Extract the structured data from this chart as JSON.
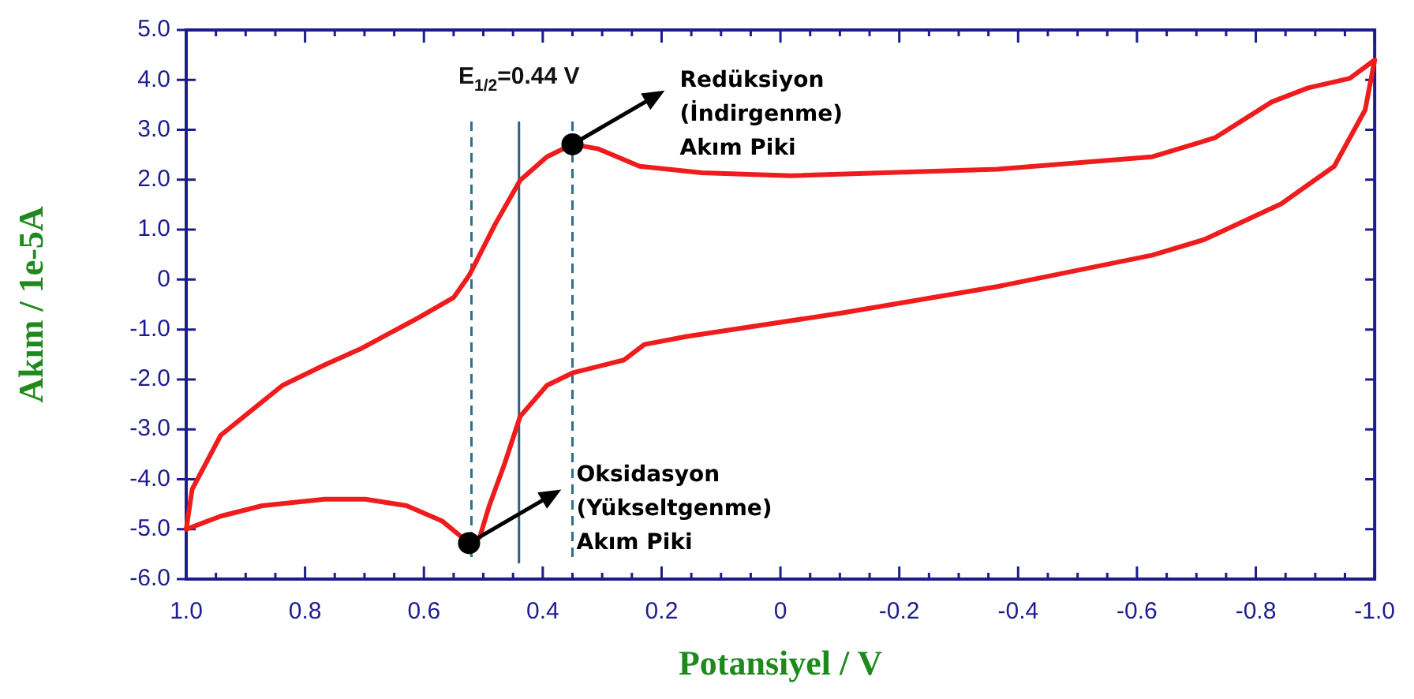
{
  "chart_data": {
    "type": "line",
    "xlabel": "Potansiyel / V",
    "ylabel": "Akım / 1e-5A",
    "xlim": [
      1,
      -1
    ],
    "ylim": [
      -6,
      5
    ],
    "xticks": [
      {
        "value": 1,
        "label": "1.0"
      },
      {
        "value": 0.95,
        "label": null
      },
      {
        "value": 0.9,
        "label": null
      },
      {
        "value": 0.85,
        "label": null
      },
      {
        "value": 0.8,
        "label": "0.8"
      },
      {
        "value": 0.75,
        "label": null
      },
      {
        "value": 0.7,
        "label": null
      },
      {
        "value": 0.65,
        "label": null
      },
      {
        "value": 0.6,
        "label": "0.6"
      },
      {
        "value": 0.55,
        "label": null
      },
      {
        "value": 0.5,
        "label": null
      },
      {
        "value": 0.45,
        "label": null
      },
      {
        "value": 0.4,
        "label": "0.4"
      },
      {
        "value": 0.35,
        "label": null
      },
      {
        "value": 0.3,
        "label": null
      },
      {
        "value": 0.25,
        "label": null
      },
      {
        "value": 0.2,
        "label": "0.2"
      },
      {
        "value": 0.15,
        "label": null
      },
      {
        "value": 0.1,
        "label": null
      },
      {
        "value": 0.05,
        "label": null
      },
      0,
      {
        "value": -0.05,
        "label": null
      },
      {
        "value": -0.1,
        "label": null
      },
      {
        "value": -0.15,
        "label": null
      },
      {
        "value": -0.2,
        "label": "-0.2"
      },
      {
        "value": -0.25,
        "label": null
      },
      {
        "value": -0.3,
        "label": null
      },
      {
        "value": -0.35,
        "label": null
      },
      {
        "value": -0.4,
        "label": "-0.4"
      },
      {
        "value": -0.45,
        "label": null
      },
      {
        "value": -0.5,
        "label": null
      },
      {
        "value": -0.55,
        "label": null
      },
      {
        "value": -0.6,
        "label": "-0.6"
      },
      {
        "value": -0.65,
        "label": null
      },
      {
        "value": -0.7,
        "label": null
      },
      {
        "value": -0.75,
        "label": null
      },
      {
        "value": -0.8,
        "label": "-0.8"
      },
      {
        "value": -0.85,
        "label": null
      },
      {
        "value": -0.9,
        "label": null
      },
      {
        "value": -0.95,
        "label": null
      },
      {
        "value": -1,
        "label": "-1.0"
      }
    ],
    "yticks": [
      {
        "value": 5,
        "label": "5.0"
      },
      {
        "value": 4,
        "label": "4.0"
      },
      {
        "value": 3,
        "label": "3.0"
      },
      {
        "value": 2,
        "label": "2.0"
      },
      {
        "value": 1,
        "label": "1.0"
      },
      0,
      {
        "value": -1,
        "label": "-1.0"
      },
      {
        "value": -2,
        "label": "-2.0"
      },
      {
        "value": -3,
        "label": "-3.0"
      },
      {
        "value": -4,
        "label": "-4.0"
      },
      {
        "value": -5,
        "label": "-5.0"
      },
      {
        "value": -6,
        "label": "-6.0"
      }
    ],
    "grid": false,
    "marker": "none",
    "line_style": "solid",
    "series": [
      {
        "color": "#ee1c1c",
        "x": [
          1.0,
          0.99,
          0.942,
          0.838,
          0.767,
          0.707,
          0.61,
          0.55,
          0.524,
          0.48,
          0.438,
          0.393,
          0.35,
          0.307,
          0.237,
          0.132,
          -0.017,
          -0.365,
          -0.626,
          -0.731,
          -0.827,
          -0.888,
          -0.958,
          -1.0
        ],
        "values": [
          -5.0,
          -4.2,
          -3.12,
          -2.12,
          -1.71,
          -1.39,
          -0.77,
          -0.36,
          0.08,
          1.11,
          1.99,
          2.46,
          2.71,
          2.62,
          2.27,
          2.14,
          2.08,
          2.21,
          2.46,
          2.84,
          3.56,
          3.84,
          4.03,
          4.4
        ]
      },
      {
        "color": "#ee1c1c",
        "x": [
          -1.0,
          -0.984,
          -0.932,
          -0.843,
          -0.713,
          -0.626,
          -0.365,
          -0.103,
          0.158,
          0.229,
          0.263,
          0.35,
          0.393,
          0.438,
          0.464,
          0.49,
          0.506,
          0.524,
          0.569,
          0.629,
          0.699,
          0.767,
          0.872,
          0.942,
          1.0
        ],
        "values": [
          4.4,
          3.4,
          2.27,
          1.52,
          0.8,
          0.49,
          -0.14,
          -0.67,
          -1.14,
          -1.3,
          -1.61,
          -1.87,
          -2.12,
          -2.74,
          -3.68,
          -4.53,
          -5.16,
          -5.28,
          -4.84,
          -4.53,
          -4.4,
          -4.4,
          -4.53,
          -4.74,
          -5.0
        ]
      }
    ],
    "ref_lines": [
      {
        "axis": "x",
        "value": 0.52,
        "color": "#2e6e8e",
        "line_style": "dashed"
      },
      {
        "axis": "x",
        "value": 0.44,
        "color": "#2b5f86",
        "line_style": "solid",
        "label": "E$_{1/2}$=0.44 V"
      },
      {
        "axis": "x",
        "value": 0.35,
        "color": "#2e6e8e",
        "line_style": "dashed"
      }
    ],
    "annotations": [
      {
        "text": "Redüksiyon\n(İndirgenme)\nAkım Piki",
        "x": 0.35,
        "y": 2.71
      },
      {
        "text": "Oksidasyon\n(Yükseltgenme)\nAkım Piki",
        "x": 0.524,
        "y": -5.28
      }
    ]
  }
}
